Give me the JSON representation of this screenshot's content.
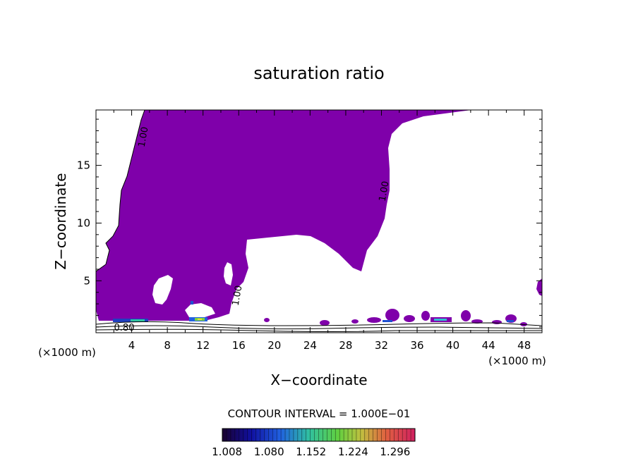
{
  "chart_data": {
    "type": "heatmap",
    "title": "saturation ratio",
    "xlabel": "X−coordinate",
    "ylabel": "Z−coordinate",
    "x_unit_left": "(×1000 m)",
    "x_unit_right": "(×1000 m)",
    "xlim": [
      0,
      50
    ],
    "ylim": [
      0.5,
      19.8
    ],
    "x_ticks": [
      4,
      8,
      12,
      16,
      20,
      24,
      28,
      32,
      36,
      40,
      44,
      48
    ],
    "y_ticks": [
      5,
      10,
      15
    ],
    "contour_labels": [
      "1.00",
      "1.00",
      "1.00",
      "0.80"
    ],
    "contour_interval_label": "CONTOUR INTERVAL = 1.000E−01",
    "colorbar": {
      "ticks": [
        "1.008",
        "1.080",
        "1.152",
        "1.224",
        "1.296"
      ],
      "min": 1.0,
      "max": 1.33
    },
    "fill_color": "#7f00aa",
    "grid": false
  }
}
